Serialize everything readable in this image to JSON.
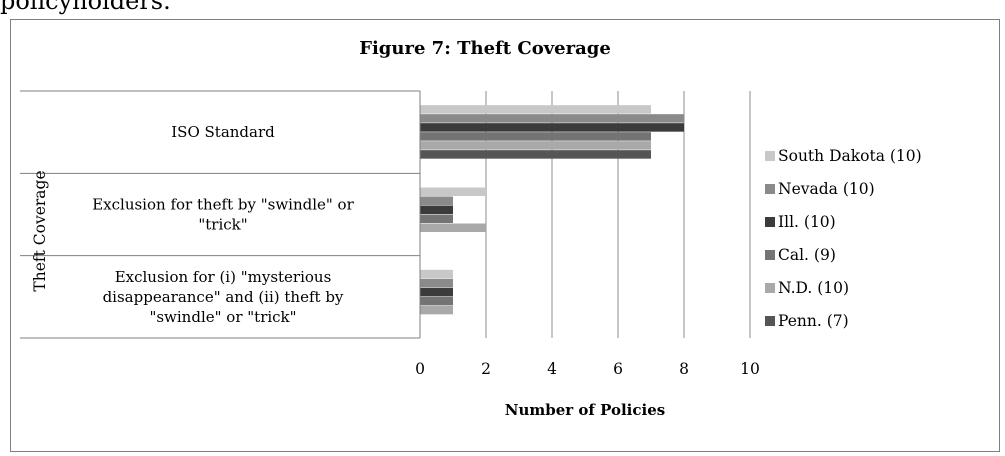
{
  "page": {
    "top_text": "policyholders."
  },
  "chart_data": {
    "type": "bar",
    "orientation": "horizontal",
    "title": "Figure 7: Theft Coverage",
    "xlabel": "Number of Policies",
    "ylabel": "Theft Coverage",
    "xlim": [
      0,
      10
    ],
    "xticks": [
      "0",
      "2",
      "4",
      "6",
      "8",
      "10"
    ],
    "grid": true,
    "legend_position": "right",
    "categories": [
      {
        "lines": [
          "ISO Standard"
        ]
      },
      {
        "lines": [
          "Exclusion for theft by \"swindle\" or",
          "\"trick\""
        ]
      },
      {
        "lines": [
          "Exclusion for (i) \"mysterious",
          "disappearance\" and (ii) theft by",
          "\"swindle\" or \"trick\""
        ]
      }
    ],
    "series": [
      {
        "name": "South Dakota (10)",
        "color": "#c8c8c8",
        "values": [
          7,
          2,
          1
        ]
      },
      {
        "name": "Nevada (10)",
        "color": "#8a8a8a",
        "values": [
          8,
          1,
          1
        ]
      },
      {
        "name": "Ill. (10)",
        "color": "#3b3b3b",
        "values": [
          8,
          1,
          1
        ]
      },
      {
        "name": "Cal. (9)",
        "color": "#747474",
        "values": [
          7,
          1,
          1
        ]
      },
      {
        "name": "N.D. (10)",
        "color": "#a9a9a9",
        "values": [
          7,
          2,
          1
        ]
      },
      {
        "name": "Penn. (7)",
        "color": "#555555",
        "values": [
          7,
          0,
          0
        ]
      }
    ]
  }
}
